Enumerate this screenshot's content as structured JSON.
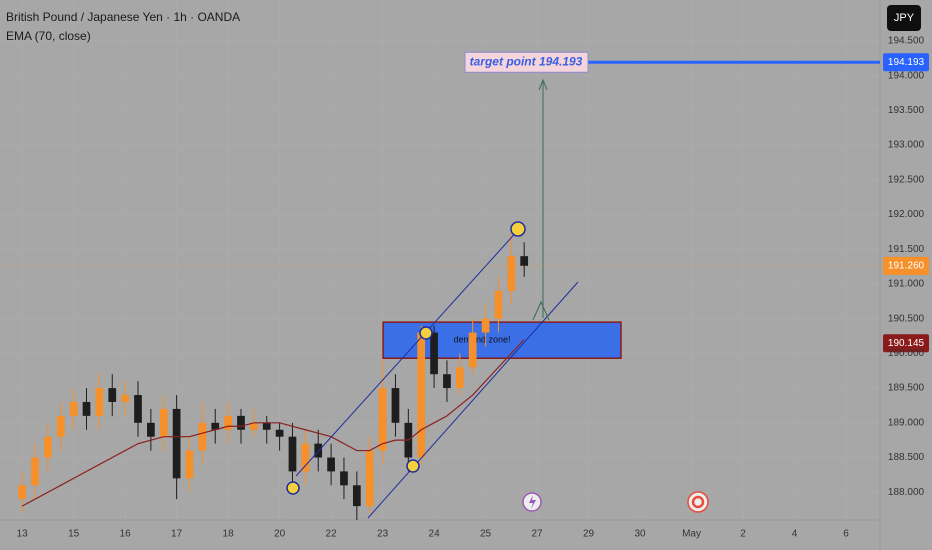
{
  "header": {
    "title": "British Pound / Japanese Yen · 1h · OANDA",
    "currency": "JPY"
  },
  "chart_data": {
    "type": "candlestick",
    "x": [
      0,
      0.25,
      0.5,
      0.75,
      1,
      1.25,
      1.5,
      1.75,
      2,
      2.25,
      2.5,
      2.75,
      3,
      3.25,
      3.5,
      3.75,
      4,
      4.25,
      4.5,
      4.75,
      5,
      5.25,
      5.5,
      5.75,
      6,
      6.25,
      6.5,
      6.75,
      7,
      7.25,
      7.5,
      7.75,
      8,
      8.25,
      8.5,
      8.75,
      9,
      9.25,
      9.5,
      9.75
    ],
    "open": [
      187.9,
      188.1,
      188.5,
      188.8,
      189.1,
      189.3,
      189.1,
      189.5,
      189.3,
      189.4,
      189.0,
      188.8,
      189.2,
      188.2,
      188.6,
      189.0,
      188.9,
      189.1,
      188.9,
      189.0,
      188.9,
      188.8,
      188.3,
      188.7,
      188.5,
      188.3,
      188.1,
      187.8,
      188.6,
      189.5,
      189.0,
      188.5,
      190.3,
      189.7,
      189.5,
      189.8,
      190.3,
      190.5,
      190.9,
      191.4
    ],
    "high": [
      188.3,
      188.7,
      189.0,
      189.3,
      189.5,
      189.5,
      189.7,
      189.7,
      189.6,
      189.6,
      189.2,
      189.4,
      189.4,
      188.8,
      189.3,
      189.2,
      189.3,
      189.2,
      189.2,
      189.1,
      189.0,
      189.0,
      188.9,
      188.9,
      188.7,
      188.5,
      188.3,
      188.8,
      189.9,
      189.7,
      189.2,
      190.4,
      190.4,
      189.9,
      190.0,
      190.5,
      190.7,
      191.1,
      191.8,
      191.6
    ],
    "low": [
      187.7,
      187.9,
      188.3,
      188.6,
      188.9,
      188.9,
      188.9,
      189.1,
      189.1,
      188.8,
      188.6,
      188.6,
      187.9,
      188.0,
      188.4,
      188.7,
      188.7,
      188.7,
      188.8,
      188.7,
      188.6,
      188.1,
      188.1,
      188.3,
      188.1,
      187.9,
      187.6,
      187.7,
      188.4,
      188.8,
      188.3,
      188.4,
      189.5,
      189.3,
      189.4,
      189.7,
      190.1,
      190.3,
      190.7,
      191.1
    ],
    "close": [
      188.1,
      188.5,
      188.8,
      189.1,
      189.3,
      189.1,
      189.5,
      189.3,
      189.4,
      189.0,
      188.8,
      189.2,
      188.2,
      188.6,
      189.0,
      188.9,
      189.1,
      188.9,
      189.0,
      188.9,
      188.8,
      188.3,
      188.7,
      188.5,
      188.3,
      188.1,
      187.8,
      188.6,
      189.5,
      189.0,
      188.5,
      190.3,
      189.7,
      189.5,
      189.8,
      190.3,
      190.5,
      190.9,
      191.4,
      191.26
    ],
    "color_up": "#f5902a",
    "color_down": "#1e1e1e",
    "series": [
      {
        "name": "EMA (70, close)",
        "color": "#8b2020",
        "values": [
          187.8,
          187.9,
          188.0,
          188.1,
          188.2,
          188.3,
          188.4,
          188.5,
          188.6,
          188.7,
          188.75,
          188.8,
          188.8,
          188.8,
          188.85,
          188.9,
          188.95,
          188.95,
          189.0,
          189.0,
          189.0,
          188.95,
          188.9,
          188.85,
          188.8,
          188.7,
          188.6,
          188.6,
          188.7,
          188.75,
          188.75,
          188.9,
          189.0,
          189.1,
          189.25,
          189.4,
          189.6,
          189.8,
          190.0,
          190.2
        ]
      }
    ],
    "xlim": [
      -0.43,
      16.66
    ],
    "xticks": [
      {
        "value": 0,
        "label": "13"
      },
      {
        "value": 1,
        "label": "15"
      },
      {
        "value": 2,
        "label": "16"
      },
      {
        "value": 3,
        "label": "17"
      },
      {
        "value": 4,
        "label": "18"
      },
      {
        "value": 5,
        "label": "20"
      },
      {
        "value": 6,
        "label": "22"
      },
      {
        "value": 7,
        "label": "23"
      },
      {
        "value": 8,
        "label": "24"
      },
      {
        "value": 9,
        "label": "25"
      },
      {
        "value": 10,
        "label": "27"
      },
      {
        "value": 11,
        "label": "29"
      },
      {
        "value": 12,
        "label": "30"
      },
      {
        "value": 13,
        "label": "May"
      },
      {
        "value": 14,
        "label": "2"
      },
      {
        "value": 15,
        "label": "4"
      },
      {
        "value": 16,
        "label": "6"
      }
    ],
    "ylim": [
      187.6,
      195.09
    ],
    "yticks": [
      {
        "value": 188,
        "label": "188.000"
      },
      {
        "value": 188.5,
        "label": "188.500"
      },
      {
        "value": 189,
        "label": "189.000"
      },
      {
        "value": 189.5,
        "label": "189.500"
      },
      {
        "value": 190,
        "label": "190.000"
      },
      {
        "value": 190.5,
        "label": "190.500"
      },
      {
        "value": 191,
        "label": "191.000"
      },
      {
        "value": 191.5,
        "label": "191.500"
      },
      {
        "value": 192,
        "label": "192.000"
      },
      {
        "value": 192.5,
        "label": "192.500"
      },
      {
        "value": 193,
        "label": "193.000"
      },
      {
        "value": 193.5,
        "label": "193.500"
      },
      {
        "value": 194,
        "label": "194.000"
      },
      {
        "value": 194.5,
        "label": "194.500"
      }
    ],
    "price_labels": [
      {
        "value": 194.193,
        "label": "194.193",
        "color": "#2962ff"
      },
      {
        "value": 191.26,
        "label": "191.260",
        "color": "#f5902a"
      },
      {
        "value": 190.145,
        "label": "190.145",
        "color": "#8b1a1a"
      }
    ],
    "zone": {
      "label": "demand zone!",
      "low": 189.93,
      "high": 190.45,
      "start": 7.01,
      "end": 11.63
    },
    "annotation": "target point 194.193"
  }
}
